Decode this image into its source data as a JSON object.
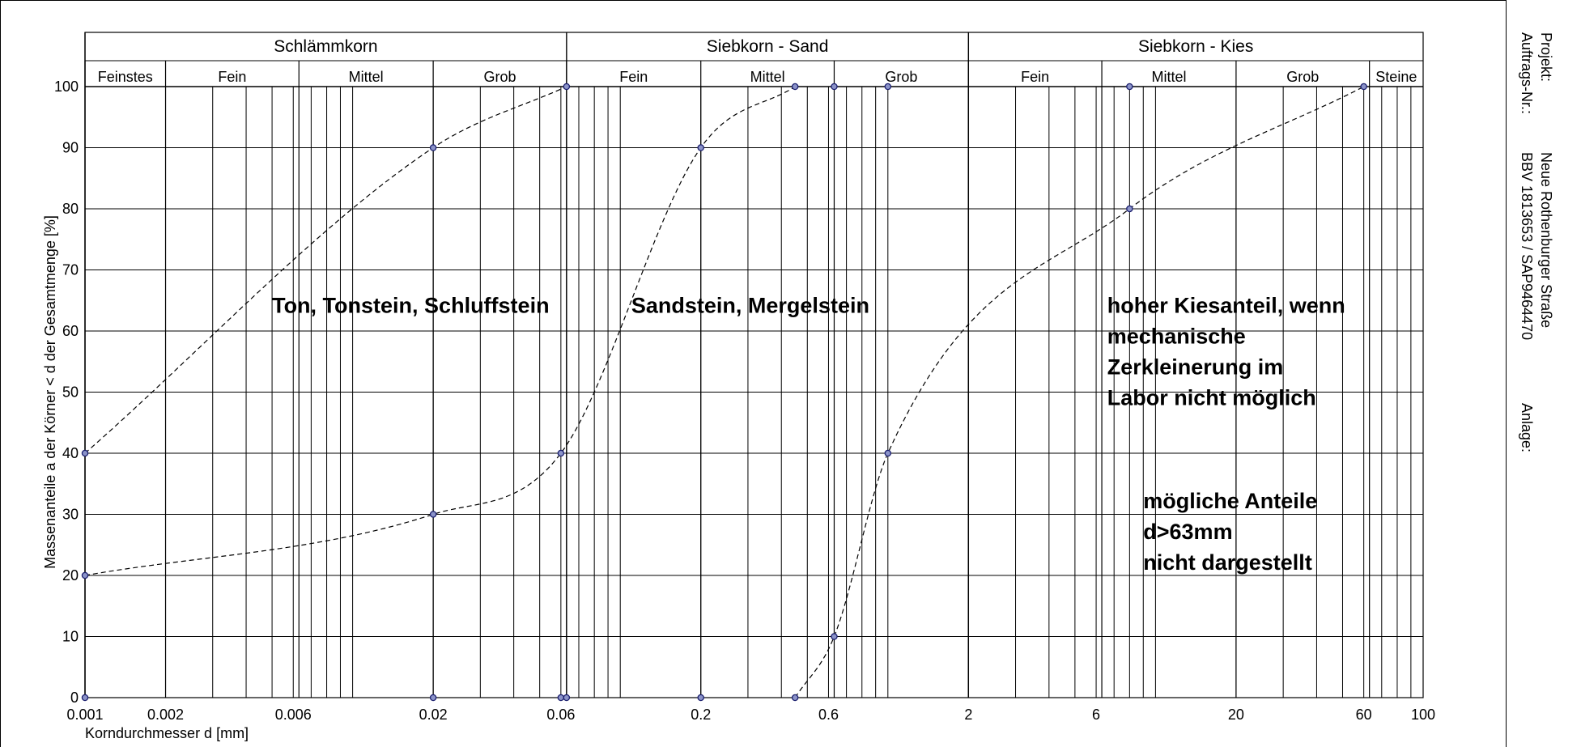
{
  "side_panel": {
    "projekt_label": "Projekt:",
    "projekt_value": "Neue Rothenburger Straße",
    "auftrag_label": "Auftrags-Nr.:",
    "auftrag_value": "BBV 1813653 / SAP9464470",
    "anlage_label": "Anlage:"
  },
  "chart_data": {
    "type": "line",
    "title": "",
    "xlabel": "Korndurchmesser d [mm]",
    "ylabel": "Massenanteile a der Körner < d der Gesamtmenge [%]",
    "x_scale": "log",
    "xlim": [
      0.001,
      100
    ],
    "ylim": [
      0,
      100
    ],
    "grid": true,
    "x_tick_labels": [
      "0.001",
      "0.002",
      "0.006",
      "0.02",
      "0.06",
      "0.2",
      "0.6",
      "2",
      "6",
      "20",
      "60",
      "100"
    ],
    "y_tick_labels": [
      "0",
      "10",
      "20",
      "30",
      "40",
      "50",
      "60",
      "70",
      "80",
      "90",
      "100"
    ],
    "groups": [
      {
        "label": "Schlämmkorn",
        "from": 0.001,
        "to": 0.063
      },
      {
        "label": "Siebkorn - Sand",
        "from": 0.063,
        "to": 2
      },
      {
        "label": "Siebkorn - Kies",
        "from": 2,
        "to": 100
      }
    ],
    "fractions": [
      {
        "label": "Feinstes",
        "from": 0.001,
        "to": 0.002
      },
      {
        "label": "Fein",
        "from": 0.002,
        "to": 0.0063
      },
      {
        "label": "Mittel",
        "from": 0.0063,
        "to": 0.02
      },
      {
        "label": "Grob",
        "from": 0.02,
        "to": 0.063
      },
      {
        "label": "Fein",
        "from": 0.063,
        "to": 0.2
      },
      {
        "label": "Mittel",
        "from": 0.2,
        "to": 0.63
      },
      {
        "label": "Grob",
        "from": 0.63,
        "to": 2
      },
      {
        "label": "Fein",
        "from": 2,
        "to": 6.3
      },
      {
        "label": "Mittel",
        "from": 6.3,
        "to": 20
      },
      {
        "label": "Grob",
        "from": 20,
        "to": 63
      },
      {
        "label": "Steine",
        "from": 63,
        "to": 100
      }
    ],
    "series": [
      {
        "points": [
          [
            0.001,
            40
          ],
          [
            0.02,
            90
          ],
          [
            0.063,
            100
          ]
        ]
      },
      {
        "points": [
          [
            0.001,
            20
          ],
          [
            0.02,
            30
          ],
          [
            0.06,
            40
          ],
          [
            0.2,
            90
          ],
          [
            0.45,
            100
          ]
        ]
      },
      {
        "points": [
          [
            0.45,
            0
          ],
          [
            0.63,
            10
          ],
          [
            1.0,
            40
          ],
          [
            8,
            80
          ],
          [
            60,
            100
          ]
        ]
      }
    ],
    "extra_markers": [
      [
        0.001,
        0
      ],
      [
        0.02,
        0
      ],
      [
        0.06,
        0
      ],
      [
        0.063,
        0
      ],
      [
        0.2,
        0
      ],
      [
        0.63,
        100
      ],
      [
        1.0,
        100
      ],
      [
        8,
        100
      ]
    ],
    "annotations": [
      {
        "lines": [
          "Ton, Tonstein, Schluffstein"
        ],
        "x": 0.005,
        "y": 63
      },
      {
        "lines": [
          "Sandstein, Mergelstein"
        ],
        "x": 0.11,
        "y": 63
      },
      {
        "lines": [
          "hoher Kiesanteil, wenn",
          "mechanische",
          "Zerkleinerung im",
          "Labor nicht möglich"
        ],
        "x": 6.6,
        "y": 63
      },
      {
        "lines": [
          "mögliche Anteile",
          "d>63mm",
          "nicht dargestellt"
        ],
        "x": 9,
        "y": 31
      }
    ]
  }
}
